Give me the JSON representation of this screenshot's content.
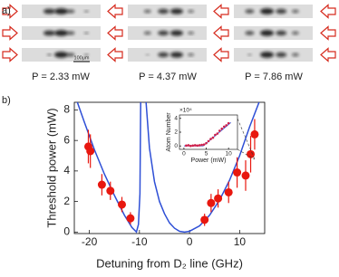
{
  "panel_a": {
    "label": "a)",
    "scale_bar": "100μm",
    "powers": [
      "P = 2.33 mW",
      "P = 4.37 mW",
      "P = 7.86 mW"
    ]
  },
  "panel_b_label": "b)",
  "chart_data": [
    {
      "type": "scatter",
      "xlabel": "Detuning from D₂ line (GHz)",
      "ylabel": "Threshold power (mW)",
      "xlim": [
        -23,
        15
      ],
      "ylim": [
        -0.1,
        8.5
      ],
      "xticks": [
        -20,
        -10,
        0,
        10
      ],
      "yticks": [
        0,
        2,
        4,
        6,
        8
      ],
      "points": {
        "color": "#e8170f",
        "x": [
          -20.2,
          -19.8,
          -17.5,
          -15.8,
          -13.5,
          -11.8,
          3,
          4.3,
          5.7,
          7.8,
          9.5,
          11.2,
          12.2,
          13
        ],
        "values": [
          5.6,
          5.3,
          3.1,
          2.7,
          1.8,
          0.9,
          0.8,
          1.9,
          2.2,
          2.6,
          3.9,
          3.7,
          5.1,
          6.4
        ],
        "errors": [
          1.1,
          1.1,
          0.7,
          0.6,
          0.5,
          0.4,
          0.4,
          0.6,
          0.6,
          0.7,
          1.0,
          1.0,
          1.2,
          1.0
        ]
      },
      "curve": {
        "color": "#2e4fd6",
        "x": [
          -22.5,
          -21,
          -19,
          -17,
          -15,
          -13,
          -11.5,
          -10.6,
          -10.2,
          -9.9,
          -9.75,
          null,
          -8.7,
          -8,
          -7,
          -6,
          -5,
          -4,
          -3,
          -2,
          -1,
          0,
          2,
          4,
          6,
          8,
          10,
          12,
          14
        ],
        "values": [
          8.6,
          7.2,
          5.4,
          3.8,
          2.4,
          1.1,
          0.3,
          0,
          0.5,
          2.5,
          8.6,
          null,
          8.6,
          5.5,
          3.3,
          2.0,
          1.2,
          0.6,
          0.25,
          0.05,
          0,
          0.05,
          0.4,
          1.1,
          2.1,
          3.4,
          5.0,
          6.9,
          8.6
        ]
      }
    },
    {
      "type": "scatter",
      "xlabel": "Power (mW)",
      "ylabel": "Atom Number",
      "multiplier": "×10⁴",
      "xlim": [
        -1,
        12
      ],
      "ylim": [
        -0.5,
        4.5
      ],
      "xticks": [
        0,
        5,
        10
      ],
      "yticks": [
        0,
        2,
        4
      ],
      "points": {
        "color": "#d0204a",
        "x": [
          0.5,
          1,
          1.5,
          2,
          2.5,
          3,
          3.5,
          4,
          4.5,
          5,
          5.5,
          6,
          6.5,
          7,
          7.5,
          8,
          8.5,
          9,
          9.5,
          10
        ],
        "values": [
          0.05,
          0.1,
          0,
          0.05,
          0.1,
          0.05,
          0.1,
          0.15,
          0.2,
          0.4,
          0.7,
          1.0,
          1.2,
          1.6,
          1.8,
          2.2,
          2.5,
          2.8,
          3.0,
          3.3
        ]
      },
      "curve": {
        "color": "#2e4fd6",
        "x": [
          0,
          4.3,
          10.5
        ],
        "values": [
          0,
          0,
          3.4
        ]
      }
    }
  ]
}
